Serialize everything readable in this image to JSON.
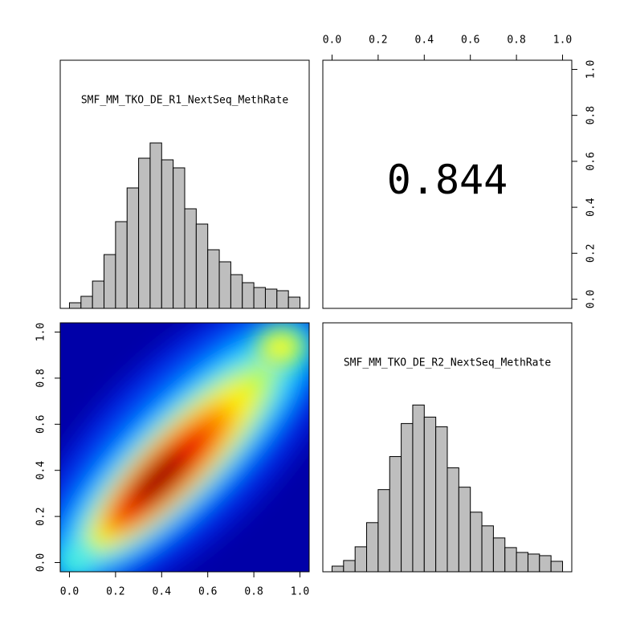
{
  "chart_data": [
    {
      "type": "histogram",
      "title": "SMF_MM_TKO_DE_R1_NextSeq_MethRate",
      "bins": [
        0,
        0.05,
        0.1,
        0.15,
        0.2,
        0.25,
        0.3,
        0.35,
        0.4,
        0.45,
        0.5,
        0.55,
        0.6,
        0.65,
        0.7,
        0.75,
        0.8,
        0.85,
        0.9,
        0.95,
        1
      ],
      "values": [
        7,
        15,
        34,
        67,
        108,
        150,
        187,
        206,
        185,
        175,
        124,
        105,
        73,
        58,
        42,
        32,
        26,
        24,
        22,
        14
      ],
      "color": "#bebebe",
      "xlim": [
        -0.04,
        1.04
      ],
      "ylim": [
        0,
        309
      ]
    },
    {
      "type": "text",
      "label": "0.844",
      "xlim": [
        -0.04,
        1.04
      ],
      "ylim": [
        -0.04,
        1.04
      ],
      "xticks": [
        {
          "value": 0,
          "label": "0.0"
        },
        0.2,
        0.4,
        0.6,
        0.8,
        {
          "value": 1,
          "label": "1.0"
        }
      ],
      "yticks": [
        {
          "value": 0,
          "label": "0.0"
        },
        0.2,
        0.4,
        0.6,
        0.8,
        {
          "value": 1,
          "label": "1.0"
        }
      ]
    },
    {
      "type": "density",
      "xlim": [
        -0.04,
        1.04
      ],
      "ylim": [
        -0.04,
        1.04
      ],
      "xticks": [
        {
          "value": 0,
          "label": "0.0"
        },
        0.2,
        0.4,
        0.6,
        0.8,
        {
          "value": 1,
          "label": "1.0"
        }
      ],
      "yticks": [
        {
          "value": 0,
          "label": "0.0"
        },
        0.2,
        0.4,
        0.6,
        0.8,
        {
          "value": 1,
          "label": "1.0"
        }
      ]
    },
    {
      "type": "histogram",
      "title": "SMF_MM_TKO_DE_R2_NextSeq_MethRate",
      "bins": [
        0,
        0.05,
        0.1,
        0.15,
        0.2,
        0.25,
        0.3,
        0.35,
        0.4,
        0.45,
        0.5,
        0.55,
        0.6,
        0.65,
        0.7,
        0.75,
        0.8,
        0.85,
        0.9,
        0.95,
        1
      ],
      "values": [
        7,
        14,
        31,
        61,
        102,
        143,
        184,
        207,
        192,
        180,
        129,
        105,
        74,
        57,
        42,
        30,
        24,
        22,
        20,
        13
      ],
      "color": "#bebebe",
      "xlim": [
        -0.04,
        1.04
      ],
      "ylim": [
        0,
        309
      ]
    }
  ]
}
